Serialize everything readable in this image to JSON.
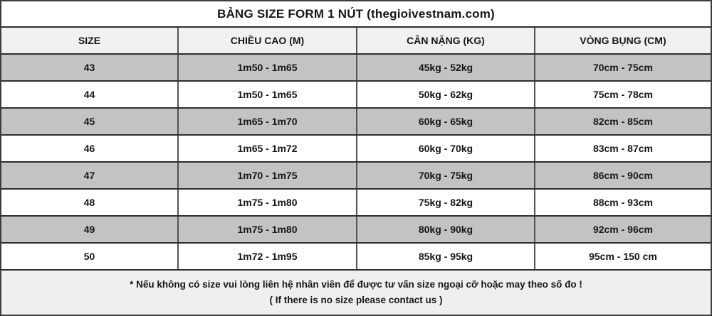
{
  "title": "BẢNG SIZE FORM 1 NÚT (thegioivestnam.com)",
  "table": {
    "headers": [
      "SIZE",
      "CHIỀU CAO (M)",
      "CÂN NẶNG (KG)",
      "VÒNG BỤNG (CM)"
    ],
    "rows": [
      {
        "size": "43",
        "height": "1m50 - 1m65",
        "weight": "45kg - 52kg",
        "waist": "70cm - 75cm"
      },
      {
        "size": "44",
        "height": "1m50 - 1m65",
        "weight": "50kg - 62kg",
        "waist": "75cm - 78cm"
      },
      {
        "size": "45",
        "height": "1m65 - 1m70",
        "weight": "60kg - 65kg",
        "waist": "82cm - 85cm"
      },
      {
        "size": "46",
        "height": "1m65 - 1m72",
        "weight": "60kg - 70kg",
        "waist": "83cm - 87cm"
      },
      {
        "size": "47",
        "height": "1m70 - 1m75",
        "weight": "70kg - 75kg",
        "waist": "86cm - 90cm"
      },
      {
        "size": "48",
        "height": "1m75 - 1m80",
        "weight": "75kg - 82kg",
        "waist": "88cm - 93cm"
      },
      {
        "size": "49",
        "height": "1m75 - 1m80",
        "weight": "80kg - 90kg",
        "waist": "92cm - 96cm"
      },
      {
        "size": "50",
        "height": "1m72 - 1m95",
        "weight": "85kg - 95kg",
        "waist": "95cm - 150 cm"
      }
    ]
  },
  "footer": {
    "note_vi": "* Nếu không có size vui lòng liên hệ nhân viên để được tư vấn size ngoại cỡ hoặc may theo số đo !",
    "note_en": "( If there is no size please contact us )"
  },
  "colors": {
    "row_gray": "#c3c3c3",
    "row_white": "#ffffff",
    "header_bg": "#f1f1f1",
    "footer_bg": "#efefef",
    "border_dark": "#2e2e2e",
    "text": "#161616"
  },
  "chart_data": {
    "type": "table",
    "title": "BẢNG SIZE FORM 1 NÚT (thegioivestnam.com)",
    "columns": [
      "SIZE",
      "CHIỀU CAO (M)",
      "CÂN NẶNG (KG)",
      "VÒNG BỤNG (CM)"
    ],
    "rows": [
      [
        "43",
        "1m50 - 1m65",
        "45kg - 52kg",
        "70cm - 75cm"
      ],
      [
        "44",
        "1m50 - 1m65",
        "50kg - 62kg",
        "75cm - 78cm"
      ],
      [
        "45",
        "1m65 - 1m70",
        "60kg - 65kg",
        "82cm - 85cm"
      ],
      [
        "46",
        "1m65 - 1m72",
        "60kg - 70kg",
        "83cm - 87cm"
      ],
      [
        "47",
        "1m70 - 1m75",
        "70kg - 75kg",
        "86cm - 90cm"
      ],
      [
        "48",
        "1m75 - 1m80",
        "75kg - 82kg",
        "88cm - 93cm"
      ],
      [
        "49",
        "1m75 - 1m80",
        "80kg - 90kg",
        "92cm - 96cm"
      ],
      [
        "50",
        "1m72 - 1m95",
        "85kg - 95kg",
        "95cm - 150 cm"
      ]
    ],
    "notes": [
      "* Nếu không có size vui lòng liên hệ nhân viên để được tư vấn size ngoại cỡ hoặc may theo số đo !",
      "( If there is no size please contact us )"
    ]
  }
}
